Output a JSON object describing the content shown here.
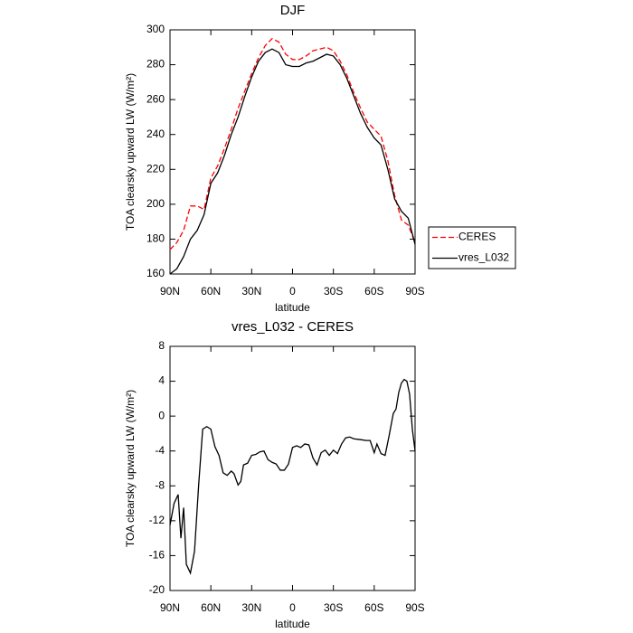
{
  "chart_data": [
    {
      "type": "line",
      "title": "DJF",
      "xlabel": "latitude",
      "ylabel": "TOA clearsky upward LW (W/m²)",
      "x": [
        90,
        85,
        80,
        75,
        70,
        65,
        60,
        55,
        50,
        45,
        40,
        35,
        30,
        25,
        20,
        15,
        10,
        5,
        0,
        -5,
        -10,
        -15,
        -20,
        -25,
        -30,
        -35,
        -40,
        -45,
        -50,
        -55,
        -60,
        -65,
        -70,
        -75,
        -80,
        -85,
        -90
      ],
      "series": [
        {
          "name": "CERES",
          "color": "#ff0000",
          "dashed": true,
          "values": [
            174,
            178,
            185,
            199,
            199,
            197,
            215,
            222,
            232,
            243,
            255,
            265,
            275,
            284,
            291,
            295,
            293,
            286,
            283,
            283,
            285,
            288,
            289,
            290,
            288,
            282,
            274,
            264,
            255,
            247,
            243,
            239,
            225,
            205,
            191,
            188,
            178
          ]
        },
        {
          "name": "vres_L032",
          "color": "#000000",
          "dashed": false,
          "values": [
            160,
            163,
            170,
            180,
            185,
            194,
            212,
            218,
            228,
            240,
            250,
            262,
            273,
            282,
            287,
            289,
            287,
            280,
            279,
            279,
            281,
            282,
            284,
            286,
            285,
            280,
            272,
            262,
            252,
            244,
            238,
            234,
            220,
            203,
            196,
            192,
            177
          ]
        }
      ],
      "xlim": [
        90,
        -90
      ],
      "xticks": [
        {
          "value": 90,
          "label": "90N"
        },
        {
          "value": 60,
          "label": "60N"
        },
        {
          "value": 30,
          "label": "30N"
        },
        0,
        {
          "value": -30,
          "label": "30S"
        },
        {
          "value": -60,
          "label": "60S"
        },
        {
          "value": -90,
          "label": "90S"
        }
      ],
      "ylim": [
        160,
        300
      ],
      "yticks": [
        160,
        180,
        200,
        220,
        240,
        260,
        280,
        300
      ],
      "legend": "right"
    },
    {
      "type": "line",
      "title": "vres_L032 - CERES",
      "xlabel": "latitude",
      "ylabel": "TOA clearsky upward LW (W/m²)",
      "x": [
        90,
        87,
        84,
        82,
        80,
        78,
        75,
        72,
        69,
        66,
        63,
        60,
        57,
        54,
        51,
        48,
        45,
        43,
        40,
        38,
        36,
        33,
        30,
        27,
        24,
        21,
        18,
        15,
        12,
        9,
        6,
        3,
        0,
        -3,
        -6,
        -9,
        -12,
        -15,
        -18,
        -21,
        -24,
        -27,
        -30,
        -33,
        -36,
        -39,
        -42,
        -45,
        -50,
        -54,
        -57,
        -60,
        -62,
        -65,
        -68,
        -71,
        -74,
        -76,
        -78,
        -80,
        -82,
        -84,
        -86,
        -88,
        -90
      ],
      "series": [
        {
          "name": "vres_L032 - CERES",
          "color": "#000000",
          "dashed": false,
          "values": [
            -12.5,
            -10,
            -9,
            -14,
            -10.5,
            -17,
            -18,
            -15.5,
            -8,
            -1.5,
            -1.2,
            -1.5,
            -3.5,
            -4.5,
            -6.5,
            -6.8,
            -6.3,
            -6.6,
            -7.9,
            -7.5,
            -5.6,
            -5.4,
            -4.5,
            -4.4,
            -4.1,
            -4,
            -5,
            -5.3,
            -5.5,
            -6.2,
            -6.2,
            -5.5,
            -3.6,
            -3.4,
            -3.6,
            -3.2,
            -3.3,
            -4.8,
            -5.6,
            -4.2,
            -3.9,
            -4.5,
            -3.9,
            -4.3,
            -3.2,
            -2.5,
            -2.4,
            -2.6,
            -2.7,
            -2.8,
            -2.8,
            -4.2,
            -3.2,
            -4.3,
            -4.5,
            -2.2,
            0.3,
            0.8,
            2.7,
            3.8,
            4.2,
            4,
            2.5,
            -1.5,
            -4
          ]
        }
      ],
      "xlim": [
        90,
        -90
      ],
      "xticks": [
        {
          "value": 90,
          "label": "90N"
        },
        {
          "value": 60,
          "label": "60N"
        },
        {
          "value": 30,
          "label": "30N"
        },
        0,
        {
          "value": -30,
          "label": "30S"
        },
        {
          "value": -60,
          "label": "60S"
        },
        {
          "value": -90,
          "label": "90S"
        }
      ],
      "ylim": [
        -20,
        8
      ],
      "yticks": [
        -20,
        -16,
        -12,
        -8,
        -4,
        0,
        4,
        8
      ]
    }
  ]
}
